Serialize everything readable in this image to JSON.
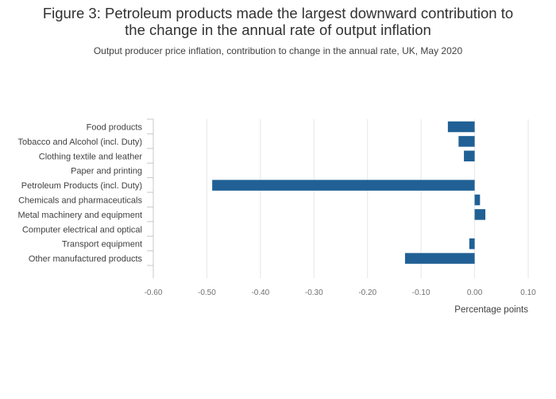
{
  "title_line1": "Figure 3: Petroleum products made the largest downward contribution to",
  "title_line2": "the change in the annual rate of output inflation",
  "subtitle": "Output producer price inflation, contribution to change in the annual rate, UK, May 2020",
  "chart_data": {
    "type": "bar",
    "orientation": "horizontal",
    "categories": [
      "Food products",
      "Tobacco and Alcohol (incl. Duty)",
      "Clothing textile and leather",
      "Paper and printing",
      "Petroleum Products (incl. Duty)",
      "Chemicals and pharmaceuticals",
      "Metal machinery and equipment",
      "Computer electrical and optical",
      "Transport equipment",
      "Other manufactured products"
    ],
    "values": [
      -0.05,
      -0.03,
      -0.02,
      0.0,
      -0.49,
      0.01,
      0.02,
      0.0,
      -0.01,
      -0.13
    ],
    "xlabel": "Percentage points",
    "ylabel": "",
    "xlim": [
      -0.6,
      0.1
    ],
    "xticks": [
      -0.6,
      -0.5,
      -0.4,
      -0.3,
      -0.2,
      -0.1,
      0.0,
      0.1
    ],
    "xtick_labels": [
      "-0.60",
      "-0.50",
      "-0.40",
      "-0.30",
      "-0.20",
      "-0.10",
      "0.00",
      "0.10"
    ],
    "grid": true,
    "bar_color": "#206095",
    "grid_color": "#e6e6e6"
  }
}
